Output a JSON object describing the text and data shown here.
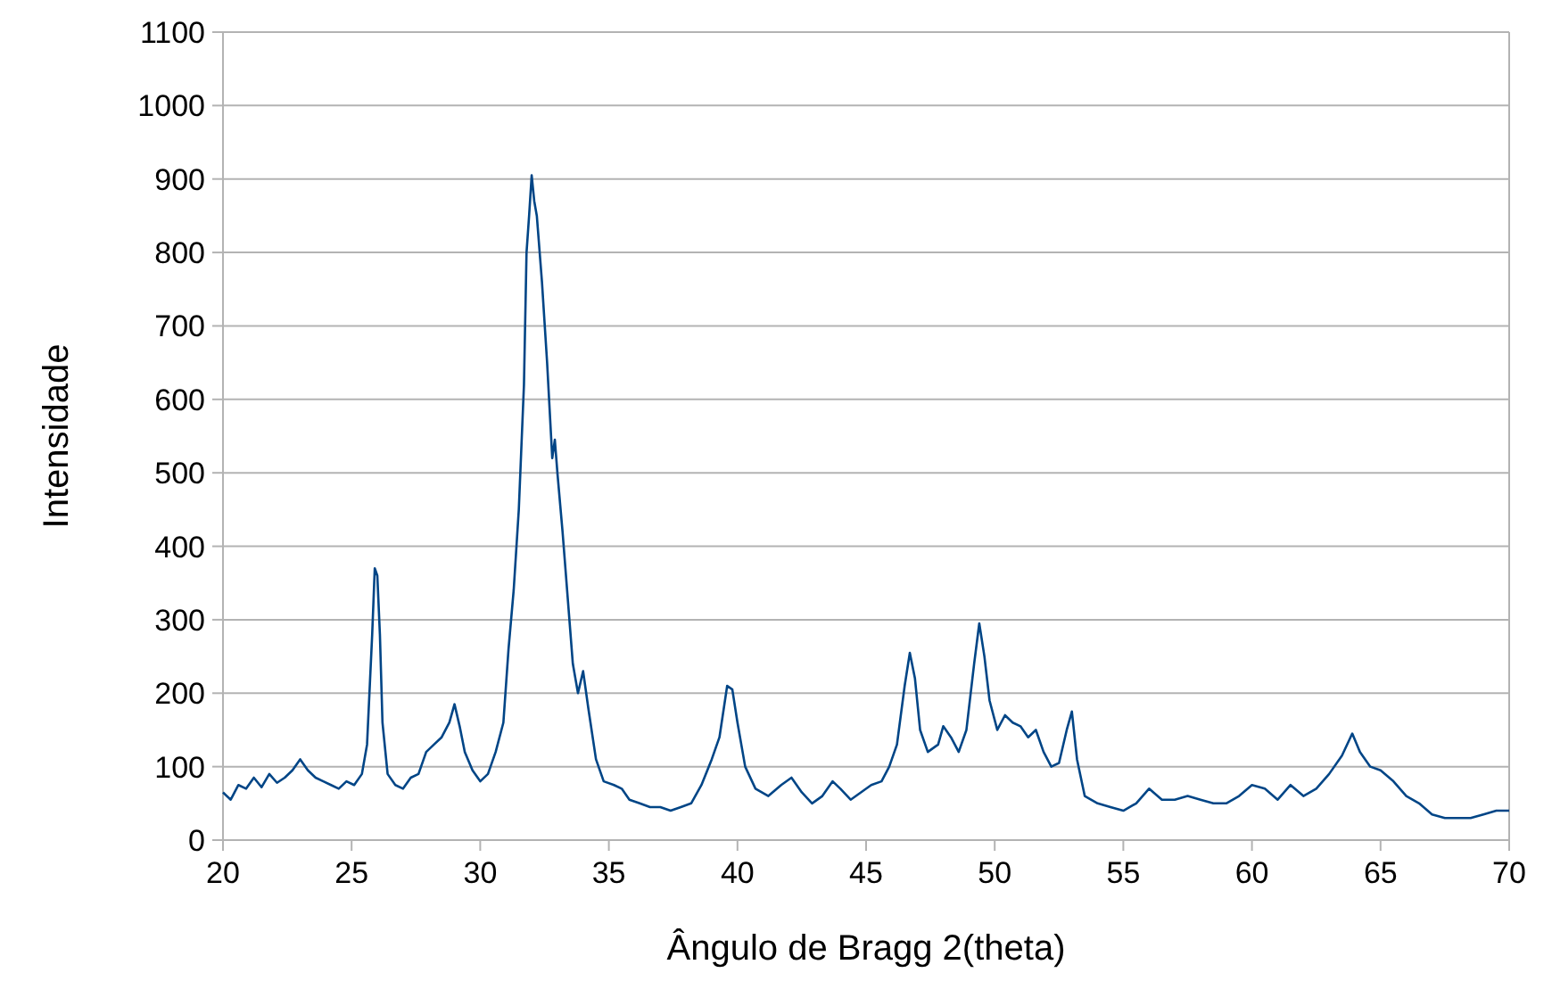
{
  "chart_data": {
    "type": "line",
    "xlabel": "Ângulo de Bragg 2(theta)",
    "ylabel": "Intensidade",
    "xlim": [
      20,
      70
    ],
    "xticks": [
      20,
      25,
      30,
      35,
      40,
      45,
      50,
      55,
      60,
      65,
      70
    ],
    "ylim": [
      0,
      1100
    ],
    "yticks": [
      0,
      100,
      200,
      300,
      400,
      500,
      600,
      700,
      800,
      900,
      1000,
      1100
    ],
    "grid": "y",
    "marker": "none",
    "line_style": "solid",
    "series": [
      {
        "color": "#004586",
        "x": [
          20.0,
          20.3,
          20.6,
          20.9,
          21.2,
          21.5,
          21.8,
          22.1,
          22.4,
          22.7,
          23.0,
          23.3,
          23.6,
          23.9,
          24.2,
          24.5,
          24.8,
          25.1,
          25.4,
          25.6,
          25.8,
          25.9,
          26.0,
          26.1,
          26.2,
          26.4,
          26.7,
          27.0,
          27.3,
          27.6,
          27.9,
          28.2,
          28.5,
          28.8,
          29.0,
          29.2,
          29.4,
          29.7,
          30.0,
          30.3,
          30.6,
          30.9,
          31.1,
          31.3,
          31.5,
          31.7,
          31.8,
          31.9,
          32.0,
          32.1,
          32.2,
          32.4,
          32.6,
          32.8,
          32.9,
          33.0,
          33.2,
          33.4,
          33.6,
          33.8,
          34.0,
          34.2,
          34.5,
          34.8,
          35.2,
          35.5,
          35.8,
          36.2,
          36.6,
          37.0,
          37.4,
          37.8,
          38.2,
          38.6,
          39.0,
          39.3,
          39.6,
          39.8,
          40.0,
          40.3,
          40.7,
          41.2,
          41.7,
          42.1,
          42.5,
          42.9,
          43.3,
          43.7,
          44.0,
          44.4,
          44.8,
          45.2,
          45.6,
          45.9,
          46.2,
          46.5,
          46.7,
          46.9,
          47.1,
          47.4,
          47.8,
          48.0,
          48.3,
          48.6,
          48.9,
          49.2,
          49.4,
          49.6,
          49.8,
          50.1,
          50.4,
          50.7,
          51.0,
          51.3,
          51.6,
          51.9,
          52.2,
          52.5,
          52.8,
          53.0,
          53.2,
          53.5,
          54.0,
          54.5,
          55.0,
          55.5,
          56.0,
          56.5,
          57.0,
          57.5,
          58.0,
          58.5,
          59.0,
          59.5,
          60.0,
          60.5,
          61.0,
          61.5,
          62.0,
          62.5,
          63.0,
          63.5,
          63.9,
          64.2,
          64.6,
          65.0,
          65.5,
          66.0,
          66.5,
          67.0,
          67.5,
          68.0,
          68.5,
          69.0,
          69.5,
          70.0
        ],
        "values": [
          65,
          55,
          75,
          70,
          85,
          72,
          90,
          78,
          85,
          95,
          110,
          95,
          85,
          80,
          75,
          70,
          80,
          75,
          90,
          130,
          280,
          370,
          360,
          280,
          160,
          90,
          75,
          70,
          85,
          90,
          120,
          130,
          140,
          160,
          185,
          155,
          120,
          95,
          80,
          90,
          120,
          160,
          260,
          340,
          450,
          620,
          800,
          850,
          905,
          870,
          850,
          760,
          650,
          520,
          545,
          500,
          420,
          330,
          240,
          200,
          230,
          180,
          110,
          80,
          75,
          70,
          55,
          50,
          45,
          45,
          40,
          45,
          50,
          75,
          110,
          140,
          210,
          205,
          160,
          100,
          70,
          60,
          75,
          85,
          65,
          50,
          60,
          80,
          70,
          55,
          65,
          75,
          80,
          100,
          130,
          210,
          255,
          220,
          150,
          120,
          130,
          155,
          140,
          120,
          150,
          240,
          295,
          250,
          190,
          150,
          170,
          160,
          155,
          140,
          150,
          120,
          100,
          105,
          150,
          175,
          110,
          60,
          50,
          45,
          40,
          50,
          70,
          55,
          55,
          60,
          55,
          50,
          50,
          60,
          75,
          70,
          55,
          75,
          60,
          70,
          90,
          115,
          145,
          120,
          100,
          95,
          80,
          60,
          50,
          35,
          30,
          30,
          30,
          35,
          40,
          40
        ]
      }
    ]
  }
}
